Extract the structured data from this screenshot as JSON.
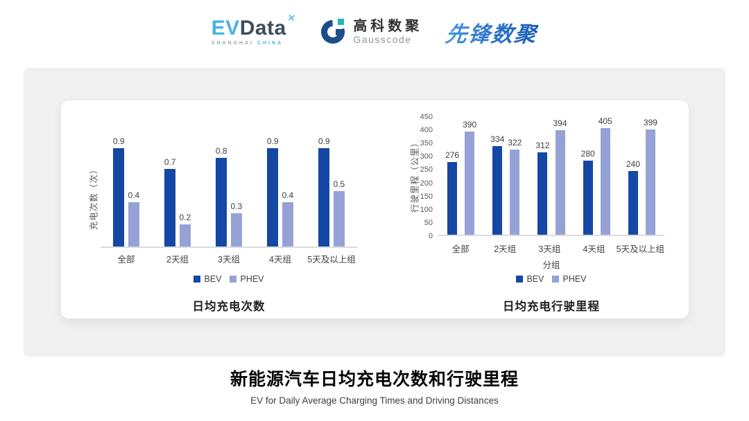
{
  "header": {
    "evdata_logo": {
      "ev": "EV",
      "data": "Data",
      "spark_icon": "✕",
      "subtitle_left": "SHANGHAI",
      "subtitle_right": "CHINA"
    },
    "gausscode_logo": {
      "name_cn": "高科数聚",
      "name_en": "Gausscode"
    },
    "pioneer_logo": {
      "text": "先锋数聚"
    }
  },
  "chart_data": [
    {
      "type": "bar",
      "title": "日均充电次数",
      "ylabel": "充电次数（次）",
      "xlabel": "",
      "categories": [
        "全部",
        "2天组",
        "3天组",
        "4天组",
        "5天及以上组"
      ],
      "series": [
        {
          "name": "BEV",
          "color": "#1547a5",
          "values": [
            0.9,
            0.7,
            0.8,
            0.9,
            0.9
          ]
        },
        {
          "name": "PHEV",
          "color": "#96a2d6",
          "values": [
            0.4,
            0.2,
            0.3,
            0.4,
            0.5
          ]
        }
      ],
      "ylim": [
        0,
        1
      ],
      "grid": false,
      "legend_position": "bottom"
    },
    {
      "type": "bar",
      "title": "日均充电行驶里程",
      "ylabel": "行驶里程（公里）",
      "xlabel": "分组",
      "categories": [
        "全部",
        "2天组",
        "3天组",
        "4天组",
        "5天及以上组"
      ],
      "series": [
        {
          "name": "BEV",
          "color": "#1547a5",
          "values": [
            276,
            334,
            312,
            280,
            240
          ]
        },
        {
          "name": "PHEV",
          "color": "#96a2d6",
          "values": [
            390,
            322,
            394,
            405,
            399
          ]
        }
      ],
      "ylim": [
        0,
        450
      ],
      "yticks": [
        0,
        50,
        100,
        150,
        200,
        250,
        300,
        350,
        400,
        450
      ],
      "grid": false,
      "legend_position": "bottom"
    }
  ],
  "footer": {
    "title_cn": "新能源汽车日均充电次数和行驶里程",
    "title_en": "EV for Daily Average Charging Times and Driving Distances"
  },
  "colors": {
    "bev": "#1547a5",
    "phev": "#96a2d6",
    "axis_line": "#dcdcdc",
    "tick_text": "#595959",
    "label_text": "#3d3d3d",
    "panel_bg": "#f0f0f1",
    "evdata_blue": "#45b3e6",
    "evdata_dark": "#3c4d5c",
    "gauss_navy": "#1d4e89",
    "gauss_teal": "#1db8bc",
    "pioneer_blue": "#2a72c8"
  }
}
